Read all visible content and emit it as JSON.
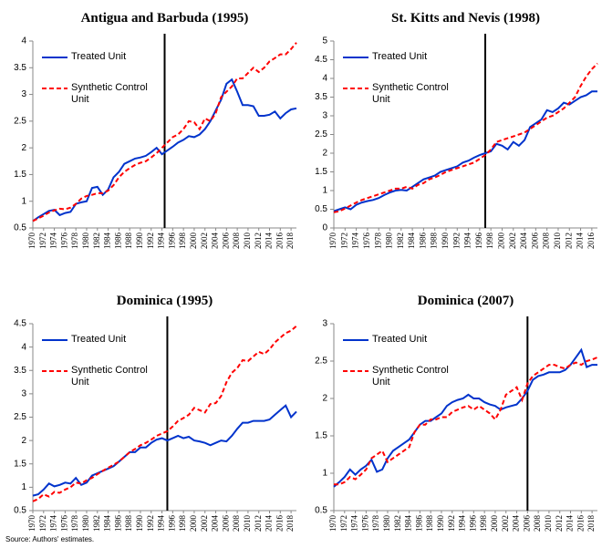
{
  "chart_data": [
    {
      "type": "line",
      "title": "Antigua and Barbuda (1995)",
      "x": [
        1970,
        1971,
        1972,
        1973,
        1974,
        1975,
        1976,
        1977,
        1978,
        1979,
        1980,
        1981,
        1982,
        1983,
        1984,
        1985,
        1986,
        1987,
        1988,
        1989,
        1990,
        1991,
        1992,
        1993,
        1994,
        1995,
        1996,
        1997,
        1998,
        1999,
        2000,
        2001,
        2002,
        2003,
        2004,
        2005,
        2006,
        2007,
        2008,
        2009,
        2010,
        2011,
        2012,
        2013,
        2014,
        2015,
        2016,
        2017,
        2018,
        2019
      ],
      "xlim": [
        1970,
        2019
      ],
      "xticks": [
        1970,
        1972,
        1974,
        1976,
        1978,
        1980,
        1982,
        1984,
        1986,
        1988,
        1990,
        1992,
        1994,
        1996,
        1998,
        2000,
        2002,
        2004,
        2006,
        2008,
        2010,
        2012,
        2014,
        2016,
        2018
      ],
      "ylim": [
        0.5,
        4
      ],
      "yticks": [
        0.5,
        1,
        1.5,
        2,
        2.5,
        3,
        3.5,
        4
      ],
      "event_x": 1994.5,
      "series": [
        {
          "name": "Treated Unit",
          "color": "#0033cc",
          "line_style": "solid",
          "values": [
            0.63,
            0.7,
            0.76,
            0.82,
            0.84,
            0.74,
            0.78,
            0.8,
            0.95,
            0.98,
            1.0,
            1.25,
            1.27,
            1.12,
            1.22,
            1.45,
            1.55,
            1.7,
            1.75,
            1.8,
            1.82,
            1.85,
            1.92,
            2.0,
            1.88,
            1.95,
            2.02,
            2.1,
            2.15,
            2.22,
            2.2,
            2.25,
            2.35,
            2.5,
            2.7,
            2.9,
            3.2,
            3.28,
            3.05,
            2.8,
            2.8,
            2.78,
            2.6,
            2.6,
            2.62,
            2.68,
            2.55,
            2.65,
            2.72,
            2.74
          ]
        },
        {
          "name": "Synthetic Control Unit",
          "color": "#ff0000",
          "line_style": "dashed",
          "values": [
            0.63,
            0.68,
            0.73,
            0.79,
            0.83,
            0.86,
            0.85,
            0.88,
            0.95,
            1.05,
            1.1,
            1.12,
            1.15,
            1.15,
            1.2,
            1.3,
            1.45,
            1.55,
            1.62,
            1.68,
            1.72,
            1.75,
            1.82,
            1.9,
            2.0,
            2.1,
            2.2,
            2.25,
            2.35,
            2.5,
            2.48,
            2.35,
            2.55,
            2.5,
            2.65,
            2.95,
            3.05,
            3.15,
            3.3,
            3.3,
            3.4,
            3.5,
            3.42,
            3.5,
            3.62,
            3.68,
            3.75,
            3.75,
            3.85,
            3.97
          ]
        }
      ]
    },
    {
      "type": "line",
      "title": "St. Kitts and Nevis (1998)",
      "x": [
        1970,
        1971,
        1972,
        1973,
        1974,
        1975,
        1976,
        1977,
        1978,
        1979,
        1980,
        1981,
        1982,
        1983,
        1984,
        1985,
        1986,
        1987,
        1988,
        1989,
        1990,
        1991,
        1992,
        1993,
        1994,
        1995,
        1996,
        1997,
        1998,
        1999,
        2000,
        2001,
        2002,
        2003,
        2004,
        2005,
        2006,
        2007,
        2008,
        2009,
        2010,
        2011,
        2012,
        2013,
        2014,
        2015,
        2016,
        2017
      ],
      "xlim": [
        1970,
        2017
      ],
      "xticks": [
        1970,
        1972,
        1974,
        1976,
        1978,
        1980,
        1982,
        1984,
        1986,
        1988,
        1990,
        1992,
        1994,
        1996,
        1998,
        2000,
        2002,
        2004,
        2006,
        2008,
        2010,
        2012,
        2014,
        2016
      ],
      "ylim": [
        0,
        5
      ],
      "yticks": [
        0,
        0.5,
        1,
        1.5,
        2,
        2.5,
        3,
        3.5,
        4,
        4.5,
        5
      ],
      "event_x": 1997,
      "series": [
        {
          "name": "Treated Unit",
          "color": "#0033cc",
          "line_style": "solid",
          "values": [
            0.45,
            0.5,
            0.55,
            0.5,
            0.62,
            0.68,
            0.72,
            0.75,
            0.8,
            0.88,
            0.95,
            1.0,
            1.02,
            1.0,
            1.1,
            1.2,
            1.3,
            1.35,
            1.4,
            1.5,
            1.55,
            1.6,
            1.65,
            1.75,
            1.8,
            1.88,
            1.95,
            2.0,
            2.05,
            2.25,
            2.2,
            2.1,
            2.3,
            2.2,
            2.35,
            2.7,
            2.8,
            2.9,
            3.15,
            3.1,
            3.2,
            3.35,
            3.3,
            3.4,
            3.5,
            3.55,
            3.65,
            3.65
          ]
        },
        {
          "name": "Synthetic Control Unit",
          "color": "#ff0000",
          "line_style": "dashed",
          "values": [
            0.42,
            0.45,
            0.52,
            0.6,
            0.68,
            0.75,
            0.8,
            0.85,
            0.9,
            0.95,
            1.0,
            1.05,
            1.05,
            1.1,
            1.05,
            1.15,
            1.2,
            1.3,
            1.35,
            1.42,
            1.5,
            1.55,
            1.6,
            1.65,
            1.7,
            1.75,
            1.85,
            1.95,
            2.1,
            2.3,
            2.35,
            2.4,
            2.45,
            2.5,
            2.55,
            2.65,
            2.75,
            2.85,
            2.95,
            3.0,
            3.1,
            3.2,
            3.35,
            3.5,
            3.8,
            4.05,
            4.25,
            4.4
          ]
        }
      ]
    },
    {
      "type": "line",
      "title": "Dominica (1995)",
      "x": [
        1970,
        1971,
        1972,
        1973,
        1974,
        1975,
        1976,
        1977,
        1978,
        1979,
        1980,
        1981,
        1982,
        1983,
        1984,
        1985,
        1986,
        1987,
        1988,
        1989,
        1990,
        1991,
        1992,
        1993,
        1994,
        1995,
        1996,
        1997,
        1998,
        1999,
        2000,
        2001,
        2002,
        2003,
        2004,
        2005,
        2006,
        2007,
        2008,
        2009,
        2010,
        2011,
        2012,
        2013,
        2014,
        2015,
        2016,
        2017,
        2018,
        2019
      ],
      "xlim": [
        1970,
        2019
      ],
      "xticks": [
        1970,
        1972,
        1974,
        1976,
        1978,
        1980,
        1982,
        1984,
        1986,
        1988,
        1990,
        1992,
        1994,
        1996,
        1998,
        2000,
        2002,
        2004,
        2006,
        2008,
        2010,
        2012,
        2014,
        2016,
        2018
      ],
      "ylim": [
        0.5,
        4.5
      ],
      "yticks": [
        0.5,
        1,
        1.5,
        2,
        2.5,
        3,
        3.5,
        4,
        4.5
      ],
      "event_x": 1995,
      "series": [
        {
          "name": "Treated Unit",
          "color": "#0033cc",
          "line_style": "solid",
          "values": [
            0.82,
            0.85,
            0.95,
            1.08,
            1.02,
            1.05,
            1.1,
            1.08,
            1.2,
            1.05,
            1.1,
            1.25,
            1.3,
            1.35,
            1.4,
            1.45,
            1.55,
            1.65,
            1.75,
            1.75,
            1.85,
            1.85,
            1.95,
            2.02,
            2.05,
            2.0,
            2.05,
            2.1,
            2.05,
            2.08,
            2.0,
            1.98,
            1.95,
            1.9,
            1.95,
            2.0,
            1.98,
            2.1,
            2.25,
            2.38,
            2.38,
            2.42,
            2.42,
            2.42,
            2.45,
            2.55,
            2.65,
            2.75,
            2.5,
            2.62
          ]
        },
        {
          "name": "Synthetic Control Unit",
          "color": "#ff0000",
          "line_style": "dashed",
          "values": [
            0.7,
            0.75,
            0.85,
            0.8,
            0.9,
            0.88,
            0.95,
            1.0,
            1.1,
            1.08,
            1.15,
            1.2,
            1.28,
            1.35,
            1.42,
            1.48,
            1.55,
            1.65,
            1.75,
            1.82,
            1.9,
            1.95,
            2.02,
            2.1,
            2.15,
            2.2,
            2.3,
            2.42,
            2.48,
            2.55,
            2.7,
            2.65,
            2.6,
            2.78,
            2.8,
            2.95,
            3.25,
            3.45,
            3.55,
            3.72,
            3.7,
            3.8,
            3.9,
            3.85,
            3.95,
            4.1,
            4.2,
            4.3,
            4.35,
            4.45
          ]
        }
      ]
    },
    {
      "type": "line",
      "title": "Dominica (2007)",
      "x": [
        1970,
        1971,
        1972,
        1973,
        1974,
        1975,
        1976,
        1977,
        1978,
        1979,
        1980,
        1981,
        1982,
        1983,
        1984,
        1985,
        1986,
        1987,
        1988,
        1989,
        1990,
        1991,
        1992,
        1993,
        1994,
        1995,
        1996,
        1997,
        1998,
        1999,
        2000,
        2001,
        2002,
        2003,
        2004,
        2005,
        2006,
        2007,
        2008,
        2009,
        2010,
        2011,
        2012,
        2013,
        2014,
        2015,
        2016,
        2017,
        2018,
        2019
      ],
      "xlim": [
        1970,
        2019
      ],
      "xticks": [
        1970,
        1972,
        1974,
        1976,
        1978,
        1980,
        1982,
        1984,
        1986,
        1988,
        1990,
        1992,
        1994,
        1996,
        1998,
        2000,
        2002,
        2004,
        2006,
        2008,
        2010,
        2012,
        2014,
        2016,
        2018
      ],
      "ylim": [
        0.5,
        3
      ],
      "yticks": [
        0.5,
        1,
        1.5,
        2,
        2.5,
        3
      ],
      "event_x": 2006,
      "series": [
        {
          "name": "Treated Unit",
          "color": "#0033cc",
          "line_style": "solid",
          "values": [
            0.82,
            0.88,
            0.95,
            1.05,
            0.98,
            1.05,
            1.1,
            1.18,
            1.02,
            1.05,
            1.2,
            1.3,
            1.35,
            1.4,
            1.45,
            1.55,
            1.65,
            1.7,
            1.7,
            1.75,
            1.8,
            1.9,
            1.95,
            1.98,
            2.0,
            2.05,
            2.0,
            2.0,
            1.95,
            1.92,
            1.9,
            1.85,
            1.88,
            1.9,
            1.92,
            2.0,
            2.1,
            2.25,
            2.3,
            2.32,
            2.35,
            2.35,
            2.35,
            2.38,
            2.45,
            2.55,
            2.65,
            2.42,
            2.45,
            2.45
          ]
        },
        {
          "name": "Synthetic Control Unit",
          "color": "#ff0000",
          "line_style": "dashed",
          "values": [
            0.85,
            0.85,
            0.88,
            0.95,
            0.92,
            0.98,
            1.05,
            1.2,
            1.25,
            1.3,
            1.15,
            1.2,
            1.25,
            1.3,
            1.35,
            1.55,
            1.65,
            1.65,
            1.72,
            1.72,
            1.75,
            1.75,
            1.82,
            1.85,
            1.88,
            1.9,
            1.85,
            1.9,
            1.85,
            1.8,
            1.72,
            1.85,
            2.05,
            2.1,
            2.15,
            1.98,
            2.2,
            2.3,
            2.35,
            2.4,
            2.45,
            2.45,
            2.42,
            2.4,
            2.45,
            2.48,
            2.45,
            2.5,
            2.52,
            2.55
          ]
        }
      ]
    }
  ],
  "source": "Source: Authors' estimates."
}
